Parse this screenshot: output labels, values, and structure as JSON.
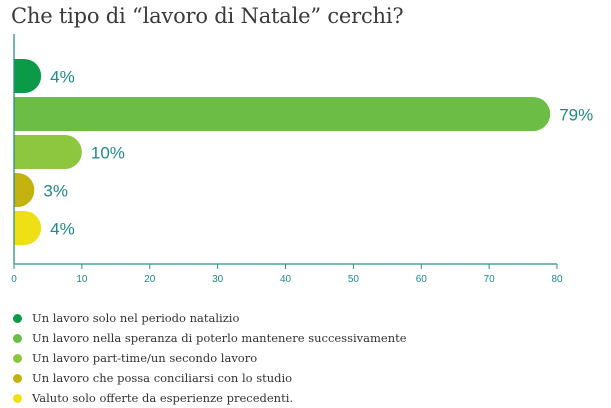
{
  "title": "Che tipo di “lavoro di Natale” cerchi?",
  "chart_data": {
    "type": "bar",
    "orientation": "horizontal",
    "categories": [
      "Un lavoro solo nel periodo natalizio",
      "Un lavoro nella speranza di poterlo mantenere successivamente",
      "Un lavoro part-time/un secondo lavoro",
      "Un lavoro che possa conciliarsi con lo studio",
      "Valuto solo offerte da esperienze precedenti."
    ],
    "values": [
      4,
      79,
      10,
      3,
      4
    ],
    "value_labels": [
      "4%",
      "79%",
      "10%",
      "3%",
      "4%"
    ],
    "colors": [
      "#0a9a48",
      "#6cbd45",
      "#8dc63f",
      "#c4b211",
      "#eee014"
    ],
    "xlim": [
      0,
      80
    ],
    "xticks": [
      0,
      10,
      20,
      30,
      40,
      50,
      60,
      70,
      80
    ],
    "label_color": "#1f8a87",
    "axis_color": "#2a9086",
    "grid": false,
    "legend_position": "bottom"
  }
}
